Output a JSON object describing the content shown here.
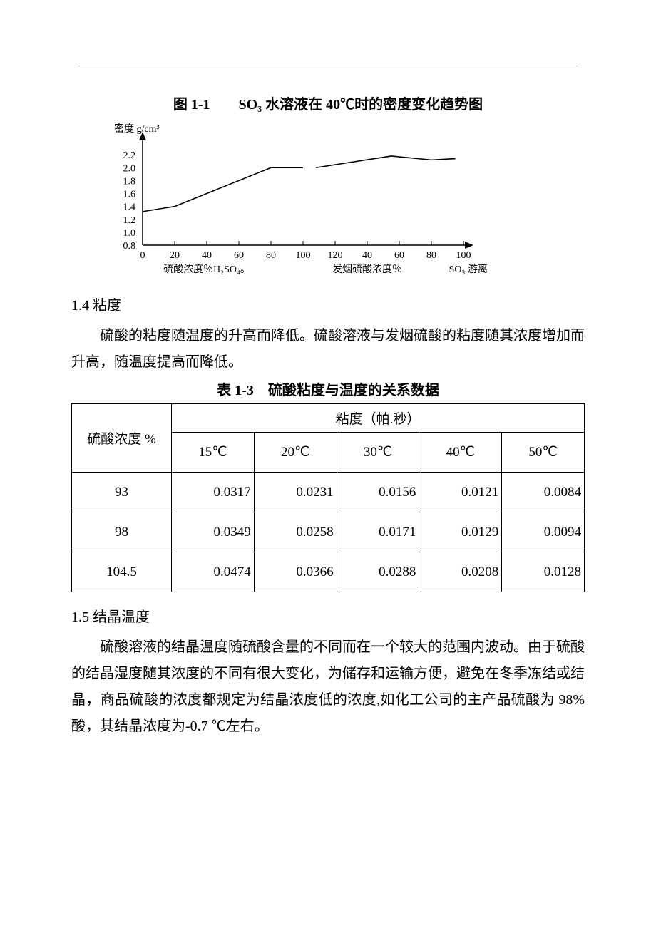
{
  "figure": {
    "title": "图 1-1　　SO₃ 水溶液在 40℃时的密度变化趋势图",
    "y_label": "密度  g/cm³",
    "x_label_left": "硫酸浓度％H₂SO₄。",
    "x_label_mid": "发烟硫酸浓度％",
    "x_label_right": "SO₃ 游离",
    "type": "line",
    "y_ticks": [
      "0.8",
      "1.0",
      "1.2",
      "1.4",
      "1.6",
      "1.8",
      "2.0",
      "2.2"
    ],
    "ylim": [
      0.8,
      2.4
    ],
    "x_ticks_left": [
      "0",
      "20",
      "40",
      "60",
      "80",
      "100"
    ],
    "x_ticks_right": [
      "120",
      "40",
      "60",
      "80",
      "100"
    ],
    "line_color": "#000000",
    "background_color": "#ffffff",
    "axis_color": "#000000",
    "line_points": [
      {
        "x": 0,
        "y": 1.32
      },
      {
        "x": 20,
        "y": 1.4
      },
      {
        "x": 80,
        "y": 2.0
      },
      {
        "x": 100,
        "y": 2.0
      },
      {
        "x": 108,
        "y": 2.0
      },
      {
        "x": 155,
        "y": 2.18
      },
      {
        "x": 180,
        "y": 2.12
      },
      {
        "x": 195,
        "y": 2.14
      }
    ]
  },
  "section_viscosity": {
    "heading": "1.4 粘度",
    "body": "硫酸的粘度随温度的升高而降低。硫酸溶液与发烟硫酸的粘度随其浓度增加而升高，随温度提高而降低。"
  },
  "table": {
    "title": "表 1-3　硫酸粘度与温度的关系数据",
    "row_header": "硫酸浓度  %",
    "group_header": "粘度（帕.秒）",
    "columns": [
      "15℃",
      "20℃",
      "30℃",
      "40℃",
      "50℃"
    ],
    "rows": [
      {
        "label": "93",
        "cells": [
          "0.0317",
          "0.0231",
          "0.0156",
          "0.0121",
          "0.0084"
        ]
      },
      {
        "label": "98",
        "cells": [
          "0.0349",
          "0.0258",
          "0.0171",
          "0.0129",
          "0.0094"
        ]
      },
      {
        "label": "104.5",
        "cells": [
          "0.0474",
          "0.0366",
          "0.0288",
          "0.0208",
          "0.0128"
        ]
      }
    ],
    "border_color": "#000000",
    "font_size": 19
  },
  "section_crystal": {
    "heading": "1.5 结晶温度",
    "body": "硫酸溶液的结晶温度随硫酸含量的不同而在一个较大的范围内波动。由于硫酸的结晶湿度随其浓度的不同有很大变化，为储存和运输方便，避免在冬季冻结或结晶，商品硫酸的浓度都规定为结晶浓度低的浓度,如化工公司的主产品硫酸为 98%酸，其结晶浓度为-0.7 ℃左右。"
  }
}
